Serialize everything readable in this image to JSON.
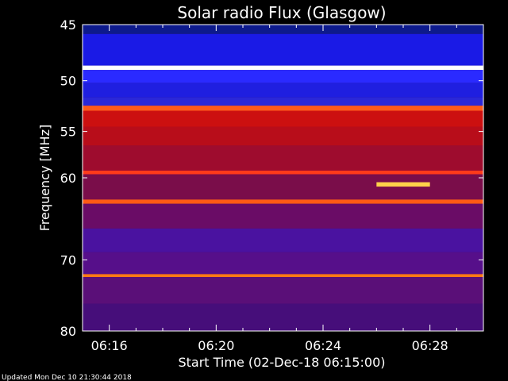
{
  "chart_data": {
    "type": "heatmap",
    "title": "Solar radio Flux (Glasgow)",
    "ylabel": "Frequency [MHz]",
    "xlabel": "Start Time (02-Dec-18 06:15:00)",
    "footer": "Updated Mon Dec 10 21:30:44 2018",
    "y_axis": {
      "min": 45,
      "max": 80,
      "scale": "log",
      "inverted": true,
      "ticks": [
        45,
        50,
        55,
        60,
        70,
        80
      ],
      "tick_labels": [
        "45",
        "50",
        "55",
        "60",
        "70",
        "80"
      ]
    },
    "x_axis": {
      "start": "06:15:00",
      "end": "06:30:00",
      "ticks_minutes": [
        16,
        20,
        24,
        28
      ],
      "tick_labels": [
        "06:16",
        "06:20",
        "06:24",
        "06:28"
      ]
    },
    "frequency_bands": [
      {
        "from": 45.0,
        "to": 45.8,
        "color": "#0d1a8c"
      },
      {
        "from": 45.8,
        "to": 48.6,
        "color": "#1a1ae6"
      },
      {
        "from": 48.6,
        "to": 49.0,
        "color": "#ffffff"
      },
      {
        "from": 49.0,
        "to": 50.2,
        "color": "#2a2aff"
      },
      {
        "from": 50.2,
        "to": 51.6,
        "color": "#1f1fe0"
      },
      {
        "from": 51.6,
        "to": 52.4,
        "color": "#2b28d8"
      },
      {
        "from": 52.4,
        "to": 52.9,
        "color": "#ff5a1a"
      },
      {
        "from": 52.9,
        "to": 54.5,
        "color": "#cc1010"
      },
      {
        "from": 54.5,
        "to": 56.5,
        "color": "#b80d1a"
      },
      {
        "from": 56.5,
        "to": 59.2,
        "color": "#9e0c2e"
      },
      {
        "from": 59.2,
        "to": 59.6,
        "color": "#ff3a1a"
      },
      {
        "from": 59.6,
        "to": 62.5,
        "color": "#7a0d4a"
      },
      {
        "from": 62.5,
        "to": 63.0,
        "color": "#ff5a14"
      },
      {
        "from": 63.0,
        "to": 66.0,
        "color": "#6a0c66"
      },
      {
        "from": 66.0,
        "to": 69.0,
        "color": "#4a12a0"
      },
      {
        "from": 69.0,
        "to": 71.9,
        "color": "#560f8a"
      },
      {
        "from": 71.9,
        "to": 72.3,
        "color": "#ff7a14"
      },
      {
        "from": 72.3,
        "to": 76.0,
        "color": "#5a0f78"
      },
      {
        "from": 76.0,
        "to": 80.0,
        "color": "#460e7a"
      }
    ],
    "events": [
      {
        "label": "burst",
        "t_start_min": 26.0,
        "t_end_min": 28.0,
        "f_low": 60.5,
        "f_high": 61.0,
        "color": "#ffd24a"
      }
    ]
  }
}
